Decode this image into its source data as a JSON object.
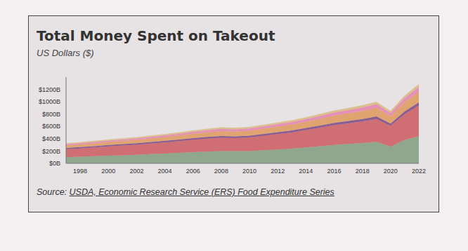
{
  "chart_data": {
    "type": "area",
    "title": "Total Money Spent on Takeout",
    "subtitle": "US Dollars ($)",
    "source_label": "Source:",
    "source": "USDA, Economic Research Service (ERS) Food Expenditure Series",
    "stacked": true,
    "grid": false,
    "x": [
      1997,
      1998,
      1999,
      2000,
      2001,
      2002,
      2003,
      2004,
      2005,
      2006,
      2007,
      2008,
      2009,
      2010,
      2011,
      2012,
      2013,
      2014,
      2015,
      2016,
      2017,
      2018,
      2019,
      2020,
      2021,
      2022
    ],
    "xlim": [
      1997,
      2022
    ],
    "xticks": [
      1998,
      2000,
      2002,
      2004,
      2006,
      2008,
      2010,
      2012,
      2014,
      2016,
      2018,
      2020,
      2022
    ],
    "ylim": [
      0,
      1400
    ],
    "yticks": [
      {
        "value": 0,
        "label": "$0B"
      },
      {
        "value": 200,
        "label": "$200B"
      },
      {
        "value": 400,
        "label": "$400B"
      },
      {
        "value": 600,
        "label": "$600B"
      },
      {
        "value": 800,
        "label": "$800B"
      },
      {
        "value": 1000,
        "label": "$1000B"
      },
      {
        "value": 1200,
        "label": "$1200B"
      }
    ],
    "series": [
      {
        "color": "#8fa78c",
        "values": [
          100,
          108,
          116,
          125,
          132,
          140,
          150,
          160,
          170,
          182,
          192,
          200,
          198,
          200,
          212,
          225,
          240,
          260,
          280,
          300,
          315,
          330,
          350,
          270,
          380,
          440
        ]
      },
      {
        "color": "#cf6f74",
        "values": [
          130,
          135,
          142,
          150,
          157,
          163,
          172,
          180,
          190,
          200,
          208,
          215,
          212,
          220,
          235,
          250,
          262,
          280,
          300,
          320,
          335,
          350,
          370,
          340,
          420,
          500
        ]
      },
      {
        "color": "#8a5d93",
        "values": [
          20,
          21,
          22,
          23,
          24,
          24,
          25,
          26,
          27,
          28,
          29,
          30,
          29,
          30,
          31,
          32,
          33,
          34,
          36,
          38,
          39,
          40,
          42,
          35,
          45,
          50
        ]
      },
      {
        "color": "#dfa46f",
        "values": [
          40,
          42,
          45,
          48,
          50,
          53,
          57,
          60,
          65,
          70,
          75,
          80,
          78,
          80,
          85,
          90,
          95,
          100,
          108,
          115,
          122,
          130,
          140,
          120,
          150,
          170
        ]
      },
      {
        "color": "#e590b6",
        "values": [
          20,
          21,
          22,
          23,
          24,
          25,
          27,
          28,
          30,
          32,
          34,
          36,
          35,
          36,
          38,
          40,
          42,
          45,
          48,
          52,
          55,
          58,
          60,
          55,
          65,
          80
        ]
      },
      {
        "color": "#d9bf8c",
        "values": [
          15,
          15,
          16,
          16,
          17,
          17,
          18,
          18,
          19,
          20,
          21,
          22,
          22,
          22,
          23,
          24,
          25,
          27,
          28,
          30,
          31,
          33,
          35,
          30,
          38,
          45
        ]
      }
    ]
  }
}
